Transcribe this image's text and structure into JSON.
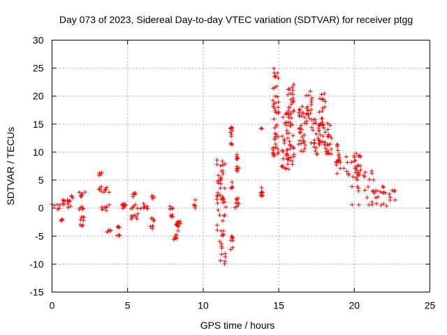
{
  "chart_data": {
    "type": "scatter",
    "title": "Day 073 of 2023, Sidereal Day-to-day VTEC variation (SDTVAR) for receiver ptgg",
    "xlabel": "GPS time / hours",
    "ylabel": "SDTVAR / TECUs",
    "xlim": [
      0,
      25
    ],
    "ylim": [
      -15,
      30
    ],
    "xticks": [
      0,
      5,
      10,
      15,
      20,
      25
    ],
    "yticks": [
      -15,
      -10,
      -5,
      0,
      5,
      10,
      15,
      20,
      25,
      30
    ],
    "grid": true,
    "marker": "+",
    "color": "#ff0000",
    "series": [
      {
        "name": "SDTVAR",
        "clusters": [
          {
            "x": [
              0.0,
              0.8
            ],
            "y": [
              -0.5,
              1.5
            ]
          },
          {
            "x": [
              0.5,
              0.7
            ],
            "y": [
              -2.3,
              -2.0
            ]
          },
          {
            "x": [
              1.0,
              1.4
            ],
            "y": [
              -0.5,
              2.2
            ]
          },
          {
            "x": [
              1.8,
              2.2
            ],
            "y": [
              2.0,
              3.0
            ]
          },
          {
            "x": [
              1.8,
              2.2
            ],
            "y": [
              -0.3,
              0.6
            ]
          },
          {
            "x": [
              1.8,
              2.2
            ],
            "y": [
              -3.5,
              -1.5
            ]
          },
          {
            "x": [
              3.1,
              3.3
            ],
            "y": [
              5.5,
              6.5
            ]
          },
          {
            "x": [
              3.1,
              3.8
            ],
            "y": [
              2.8,
              4.2
            ]
          },
          {
            "x": [
              3.2,
              3.8
            ],
            "y": [
              -0.5,
              0.8
            ]
          },
          {
            "x": [
              3.6,
              3.9
            ],
            "y": [
              -4.5,
              -3.8
            ]
          },
          {
            "x": [
              4.3,
              4.5
            ],
            "y": [
              -5.2,
              -4.8
            ]
          },
          {
            "x": [
              4.3,
              4.5
            ],
            "y": [
              -3.5,
              -3.2
            ]
          },
          {
            "x": [
              4.6,
              5.2
            ],
            "y": [
              -0.5,
              0.8
            ]
          },
          {
            "x": [
              5.3,
              5.6
            ],
            "y": [
              1.8,
              2.8
            ]
          },
          {
            "x": [
              5.2,
              6.0
            ],
            "y": [
              -2.0,
              0.8
            ]
          },
          {
            "x": [
              6.0,
              6.6
            ],
            "y": [
              -0.3,
              0.8
            ]
          },
          {
            "x": [
              6.5,
              6.7
            ],
            "y": [
              -4.0,
              -3.0
            ]
          },
          {
            "x": [
              6.5,
              6.8
            ],
            "y": [
              -2.3,
              -1.8
            ]
          },
          {
            "x": [
              6.6,
              6.8
            ],
            "y": [
              1.6,
              2.3
            ]
          },
          {
            "x": [
              7.8,
              8.0
            ],
            "y": [
              -0.2,
              0.3
            ]
          },
          {
            "x": [
              7.8,
              8.0
            ],
            "y": [
              -1.6,
              -1.0
            ]
          },
          {
            "x": [
              7.8,
              8.3
            ],
            "y": [
              -5.8,
              -4.8
            ]
          },
          {
            "x": [
              8.2,
              8.4
            ],
            "y": [
              -4.5,
              -2.5
            ]
          },
          {
            "x": [
              8.3,
              8.5
            ],
            "y": [
              -2.8,
              -2.3
            ]
          },
          {
            "x": [
              9.4,
              9.5
            ],
            "y": [
              0.0,
              1.5
            ]
          },
          {
            "x": [
              10.9,
              11.5
            ],
            "y": [
              -10.0,
              9.0
            ]
          },
          {
            "x": [
              11.8,
              12.0
            ],
            "y": [
              -7.5,
              -5.0
            ]
          },
          {
            "x": [
              11.8,
              12.0
            ],
            "y": [
              3.5,
              5.0
            ]
          },
          {
            "x": [
              11.8,
              12.0
            ],
            "y": [
              10.8,
              14.5
            ]
          },
          {
            "x": [
              12.1,
              12.4
            ],
            "y": [
              -0.3,
              1.8
            ]
          },
          {
            "x": [
              12.2,
              12.4
            ],
            "y": [
              6.5,
              10.0
            ]
          },
          {
            "x": [
              13.8,
              14.0
            ],
            "y": [
              2.0,
              4.5
            ]
          },
          {
            "x": [
              13.8,
              14.0
            ],
            "y": [
              13.8,
              14.3
            ]
          },
          {
            "x": [
              14.6,
              15.0
            ],
            "y": [
              9.0,
              25.0
            ]
          },
          {
            "x": [
              15.2,
              15.6
            ],
            "y": [
              7.0,
              17.0
            ]
          },
          {
            "x": [
              15.6,
              16.0
            ],
            "y": [
              6.0,
              22.5
            ]
          },
          {
            "x": [
              16.3,
              16.8
            ],
            "y": [
              9.0,
              18.5
            ]
          },
          {
            "x": [
              16.8,
              17.2
            ],
            "y": [
              14.5,
              21.0
            ]
          },
          {
            "x": [
              17.1,
              17.7
            ],
            "y": [
              9.5,
              16.0
            ]
          },
          {
            "x": [
              17.6,
              18.1
            ],
            "y": [
              11.0,
              21.0
            ]
          },
          {
            "x": [
              18.1,
              18.5
            ],
            "y": [
              9.5,
              15.5
            ]
          },
          {
            "x": [
              18.8,
              19.1
            ],
            "y": [
              6.0,
              12.0
            ]
          },
          {
            "x": [
              19.3,
              20.5
            ],
            "y": [
              5.0,
              10.0
            ]
          },
          {
            "x": [
              19.8,
              21.3
            ],
            "y": [
              0.5,
              8.0
            ]
          },
          {
            "x": [
              21.3,
              22.8
            ],
            "y": [
              0.0,
              4.0
            ]
          }
        ]
      }
    ]
  }
}
